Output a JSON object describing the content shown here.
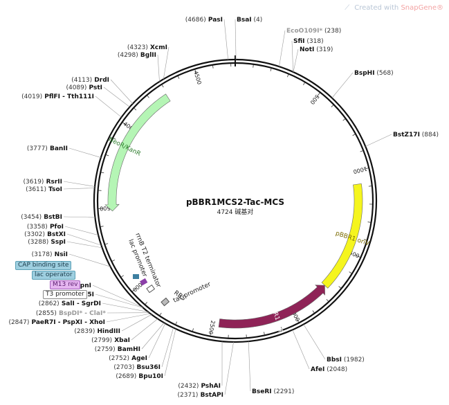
{
  "watermark": {
    "text": "Created with ",
    "brand": "SnapGene®"
  },
  "plasmid": {
    "name": "pBBR1MCS2-Tac-MCS",
    "size": "4724 碱基对",
    "length": 4724
  },
  "ruler": [
    {
      "pos": 500,
      "label": "500"
    },
    {
      "pos": 1000,
      "label": "1000"
    },
    {
      "pos": 1500,
      "label": "1500"
    },
    {
      "pos": 2000,
      "label": "2000"
    },
    {
      "pos": 2500,
      "label": "2500"
    },
    {
      "pos": 3000,
      "label": "3000"
    },
    {
      "pos": 3500,
      "label": "3500"
    },
    {
      "pos": 4000,
      "label": "4000"
    },
    {
      "pos": 4500,
      "label": "4500"
    }
  ],
  "features": [
    {
      "name": "pBBR1 oriV",
      "start": 1080,
      "end": 1750,
      "color": "#f5f51e",
      "text_color": "#7a6a00",
      "direction": "none"
    },
    {
      "name": "pBBR1 Rep",
      "start": 1750,
      "end": 2460,
      "color": "#8f2357",
      "text_color": "#ffffff",
      "direction": "reverse"
    },
    {
      "name": "NeoR/KanR",
      "start": 3480,
      "end": 4290,
      "color": "#b5f5b5",
      "text_color": "#2a7a2a",
      "direction": "reverse"
    }
  ],
  "small_labels": {
    "rrnb": "rrnB T2 terminator",
    "lacpro": "lac promoter",
    "rbs": "RBS",
    "tacpro": "tac promoter"
  },
  "feature_tags": {
    "cap": "CAP binding site",
    "lacop": "lac operator",
    "m13": "M13 rev",
    "t3": "T3 promoter"
  },
  "sites": [
    {
      "num": "(4686)",
      "name": "PasI",
      "pos": 4686,
      "gray": false
    },
    {
      "num": "(4)",
      "name": "BsaI",
      "pos": 4,
      "gray": false
    },
    {
      "num": "(238)",
      "name": "EcoO109I*",
      "pos": 238,
      "gray": true
    },
    {
      "num": "(318)",
      "name": "SfiI",
      "pos": 318,
      "gray": false
    },
    {
      "num": "(319)",
      "name": "NotI",
      "pos": 319,
      "gray": false
    },
    {
      "num": "(568)",
      "name": "BspHI",
      "pos": 568,
      "gray": false
    },
    {
      "num": "(884)",
      "name": "BstZ17I",
      "pos": 884,
      "gray": false
    },
    {
      "num": "(1982)",
      "name": "BbsI",
      "pos": 1982,
      "gray": false
    },
    {
      "num": "(2048)",
      "name": "AfeI",
      "pos": 2048,
      "gray": false
    },
    {
      "num": "(2291)",
      "name": "BseRI",
      "pos": 2291,
      "gray": false
    },
    {
      "num": "(2371)",
      "name": "BstAPI",
      "pos": 2371,
      "gray": false
    },
    {
      "num": "(2432)",
      "name": "PshAI",
      "pos": 2432,
      "gray": false
    },
    {
      "num": "(2689)",
      "name": "Bpu10I",
      "pos": 2689,
      "gray": false
    },
    {
      "num": "(2703)",
      "name": "Bsu36I",
      "pos": 2703,
      "gray": false
    },
    {
      "num": "(2752)",
      "name": "AgeI",
      "pos": 2752,
      "gray": false
    },
    {
      "num": "(2759)",
      "name": "BamHI",
      "pos": 2759,
      "gray": false
    },
    {
      "num": "(2799)",
      "name": "XbaI",
      "pos": 2799,
      "gray": false
    },
    {
      "num": "(2839)",
      "name": "HindIII",
      "pos": 2839,
      "gray": false
    },
    {
      "num": "(2847)",
      "name": "PaeR7I - PspXI - XhoI",
      "pos": 2847,
      "gray": false
    },
    {
      "num": "(2855)",
      "name": "BspDI* - ClaI*",
      "pos": 2855,
      "gray": true
    },
    {
      "num": "(2862)",
      "name": "SalI - SgrDI",
      "pos": 2862,
      "gray": false
    },
    {
      "num": "(2897)",
      "name": "Acc65I",
      "pos": 2897,
      "gray": false
    },
    {
      "num": "(2901)",
      "name": "KpnI",
      "pos": 2901,
      "gray": false
    },
    {
      "num": "(3178)",
      "name": "NsiI",
      "pos": 3178,
      "gray": false
    },
    {
      "num": "(3288)",
      "name": "SspI",
      "pos": 3288,
      "gray": false
    },
    {
      "num": "(3302)",
      "name": "BstXI",
      "pos": 3302,
      "gray": false
    },
    {
      "num": "(3358)",
      "name": "PfoI",
      "pos": 3358,
      "gray": false
    },
    {
      "num": "(3454)",
      "name": "BstBI",
      "pos": 3454,
      "gray": false
    },
    {
      "num": "(3611)",
      "name": "TsoI",
      "pos": 3611,
      "gray": false
    },
    {
      "num": "(3619)",
      "name": "RsrII",
      "pos": 3619,
      "gray": false
    },
    {
      "num": "(3777)",
      "name": "BanII",
      "pos": 3777,
      "gray": false
    },
    {
      "num": "(4019)",
      "name": "PflFI - Tth111I",
      "pos": 4019,
      "gray": false
    },
    {
      "num": "(4089)",
      "name": "PstI",
      "pos": 4089,
      "gray": false
    },
    {
      "num": "(4113)",
      "name": "DrdI",
      "pos": 4113,
      "gray": false
    },
    {
      "num": "(4298)",
      "name": "BglII",
      "pos": 4298,
      "gray": false
    },
    {
      "num": "(4323)",
      "name": "XcmI",
      "pos": 4323,
      "gray": false
    }
  ]
}
